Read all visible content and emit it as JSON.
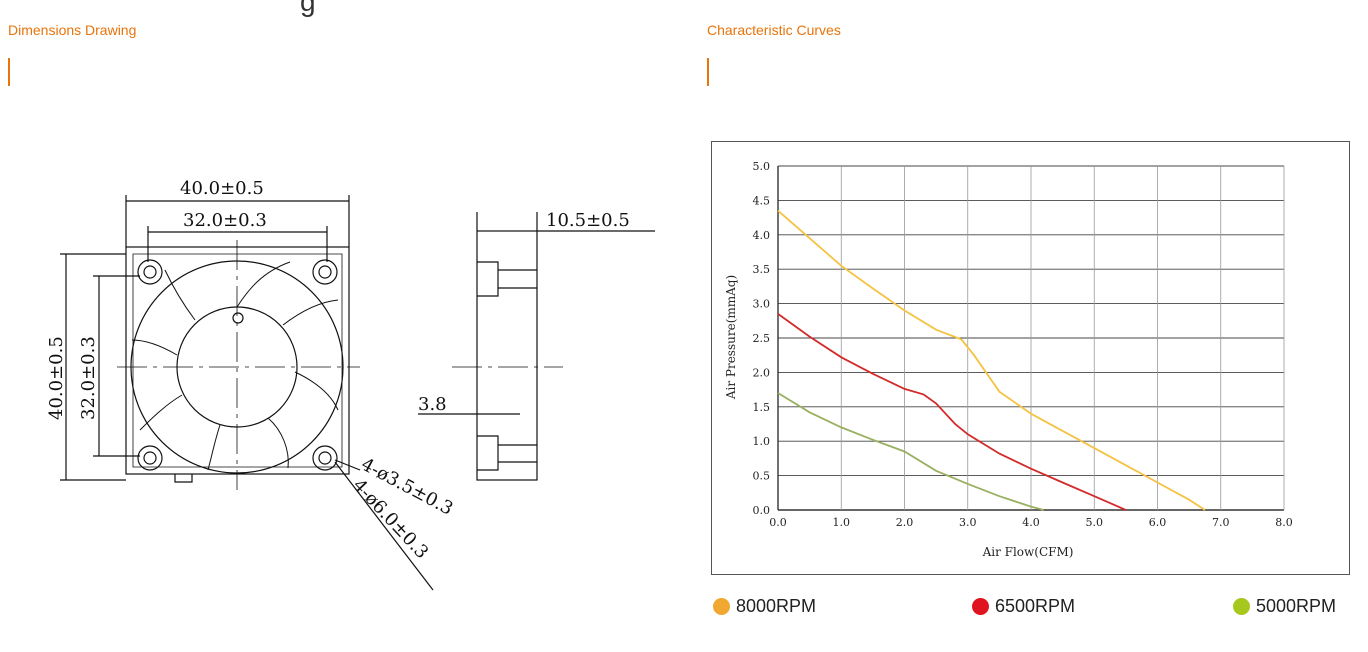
{
  "sections": {
    "left_title": "Dimensions Drawing",
    "right_title": "Characteristic Curves"
  },
  "header_fragment": "g",
  "dimensions": {
    "overall_width": "40.0±0.5",
    "hole_spacing_h": "32.0±0.3",
    "overall_height": "40.0±0.5",
    "hole_spacing_v": "32.0±0.3",
    "thickness": "10.5±0.5",
    "offset": "3.8",
    "hole_small": "4-ø3.5±0.3",
    "hole_large": "4-ø6.0±0.3"
  },
  "chart_data": {
    "type": "line",
    "xlabel": "Air Flow(CFM)",
    "ylabel": "Air Pressure(mmAq)",
    "xlim": [
      0,
      8
    ],
    "ylim": [
      0,
      5
    ],
    "xticks": [
      "0.0",
      "1.0",
      "2.0",
      "3.0",
      "4.0",
      "5.0",
      "6.0",
      "7.0",
      "8.0"
    ],
    "yticks": [
      "0.0",
      "0.5",
      "1.0",
      "1.5",
      "2.0",
      "2.5",
      "3.0",
      "3.5",
      "4.0",
      "4.5",
      "5.0"
    ],
    "grid": true,
    "series": [
      {
        "name": "8000RPM",
        "color": "#f5c242",
        "x": [
          0,
          0.5,
          1,
          1.5,
          2,
          2.5,
          2.9,
          3.1,
          3.5,
          4,
          4.5,
          5,
          5.5,
          6,
          6.5,
          6.75
        ],
        "y": [
          4.35,
          3.95,
          3.55,
          3.22,
          2.9,
          2.62,
          2.48,
          2.25,
          1.72,
          1.4,
          1.15,
          0.9,
          0.65,
          0.4,
          0.15,
          0
        ]
      },
      {
        "name": "6500RPM",
        "color": "#d32a2a",
        "x": [
          0,
          0.5,
          1,
          1.5,
          2,
          2.3,
          2.5,
          2.8,
          3,
          3.5,
          4,
          4.5,
          5,
          5.5
        ],
        "y": [
          2.85,
          2.52,
          2.22,
          1.98,
          1.76,
          1.68,
          1.55,
          1.25,
          1.1,
          0.82,
          0.6,
          0.4,
          0.2,
          0
        ]
      },
      {
        "name": "5000RPM",
        "color": "#99b060",
        "x": [
          0,
          0.5,
          1,
          1.5,
          2,
          2.5,
          3,
          3.5,
          4,
          4.2
        ],
        "y": [
          1.7,
          1.42,
          1.2,
          1.02,
          0.85,
          0.57,
          0.38,
          0.2,
          0.05,
          0
        ]
      }
    ]
  },
  "legend": [
    {
      "label": "8000RPM",
      "color": "#f0a830"
    },
    {
      "label": "6500RPM",
      "color": "#e0141e"
    },
    {
      "label": "5000RPM",
      "color": "#a6c81e"
    }
  ]
}
